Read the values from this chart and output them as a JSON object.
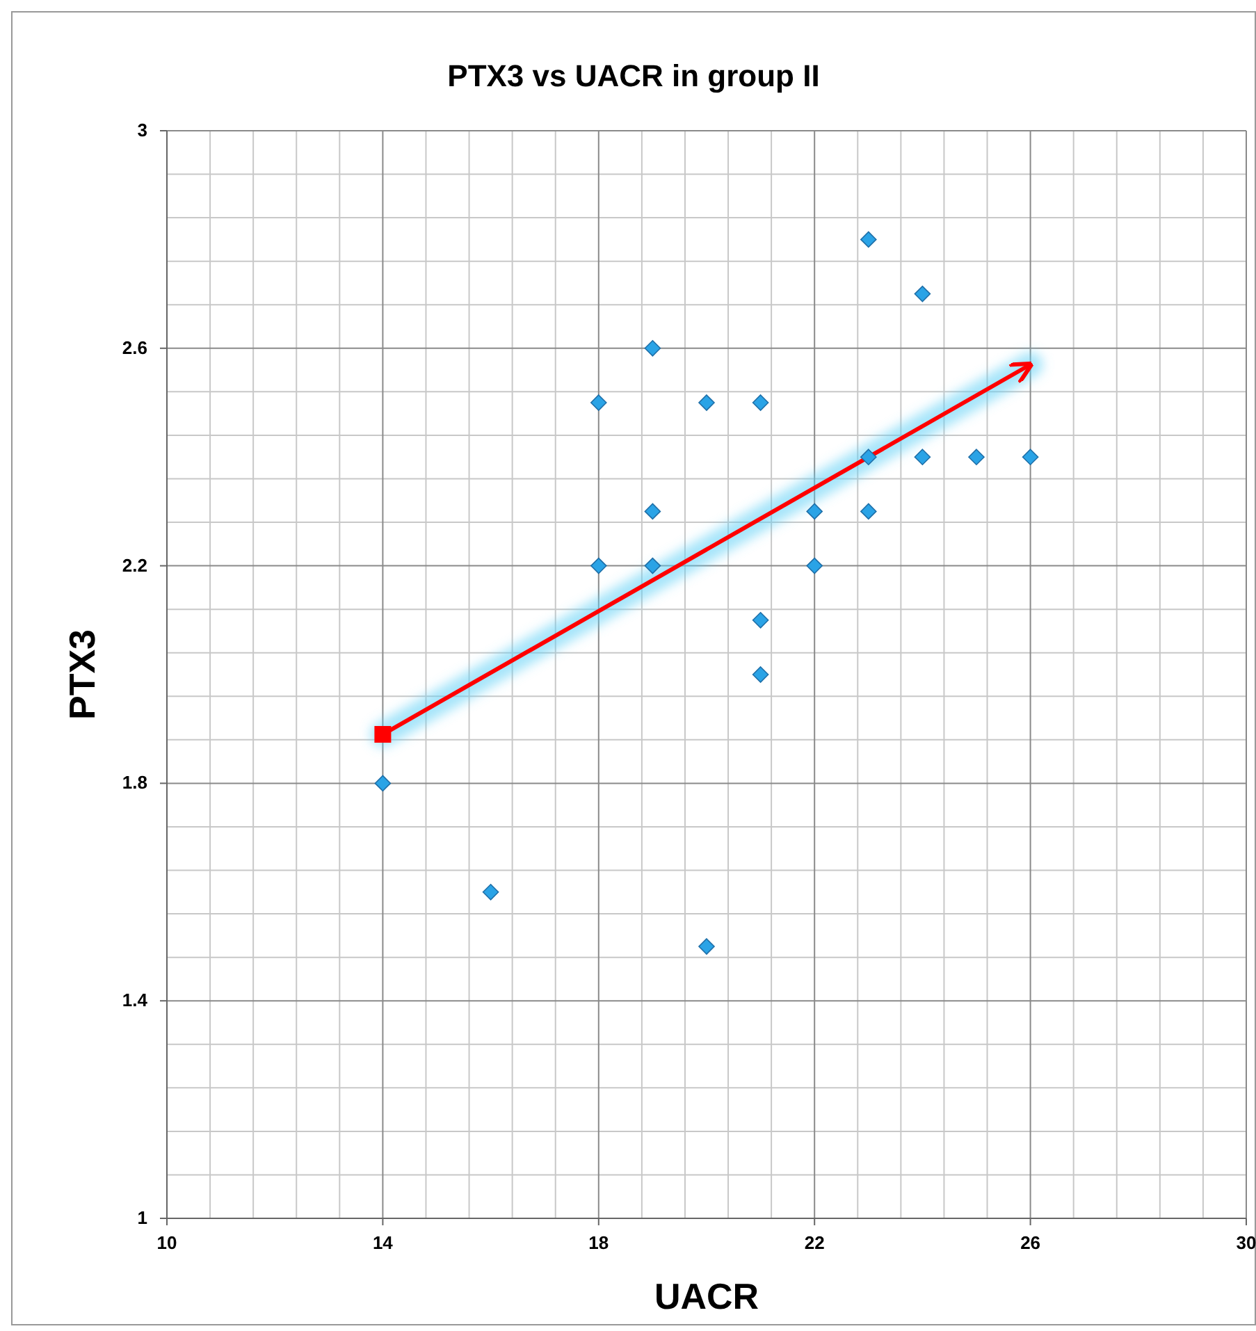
{
  "chart_data": {
    "type": "scatter",
    "title": "PTX3 vs UACR in group II",
    "xlabel": "UACR",
    "ylabel": "PTX3",
    "xlim": [
      10,
      30
    ],
    "xticks": [
      10,
      14,
      18,
      22,
      26,
      30
    ],
    "ylim": [
      1,
      3
    ],
    "yticks": [
      1,
      1.4,
      1.8,
      2.2,
      2.6,
      3
    ],
    "grid": true,
    "series": [
      {
        "color": "#2aa3e6",
        "marker": "diamond",
        "x": [
          14,
          16,
          18,
          18,
          19,
          19,
          19,
          20,
          20,
          21,
          21,
          21,
          22,
          22,
          23,
          23,
          23,
          24,
          24,
          25,
          26
        ],
        "values": [
          1.8,
          1.6,
          2.5,
          2.2,
          2.6,
          2.3,
          2.2,
          2.5,
          1.5,
          2.5,
          2.1,
          2.0,
          2.3,
          2.2,
          2.8,
          2.4,
          2.3,
          2.7,
          2.4,
          2.4,
          2.4
        ]
      },
      {
        "type": "line",
        "color": "#ff0000",
        "marker": "square",
        "x": [
          14,
          26
        ],
        "values": [
          1.89,
          2.57
        ]
      }
    ]
  }
}
